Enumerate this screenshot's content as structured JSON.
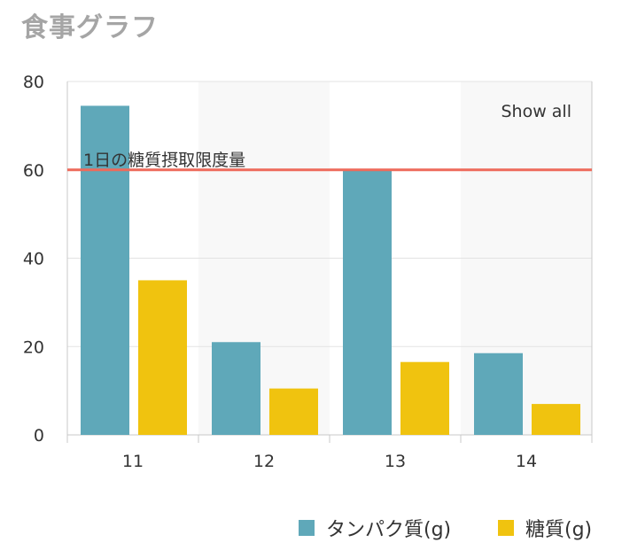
{
  "page": {
    "title": "食事グラフ"
  },
  "chart_data": {
    "type": "bar",
    "title": "食事グラフ",
    "categories": [
      "11",
      "12",
      "13",
      "14"
    ],
    "series": [
      {
        "name": "タンパク質(g)",
        "color": "#5fa8b9",
        "values": [
          74.5,
          21,
          60,
          18.5
        ]
      },
      {
        "name": "糖質(g)",
        "color": "#f0c30f",
        "values": [
          35,
          10.5,
          16.5,
          7
        ]
      }
    ],
    "ylim": [
      0,
      80
    ],
    "yticks": [
      0,
      20,
      40,
      60,
      80
    ],
    "grid": true,
    "legend_position": "bottom-right",
    "reference_line": {
      "value": 60,
      "label": "1日の糖質摂取限度量",
      "color": "#ee6a5b"
    },
    "reset_button": "Show all"
  }
}
